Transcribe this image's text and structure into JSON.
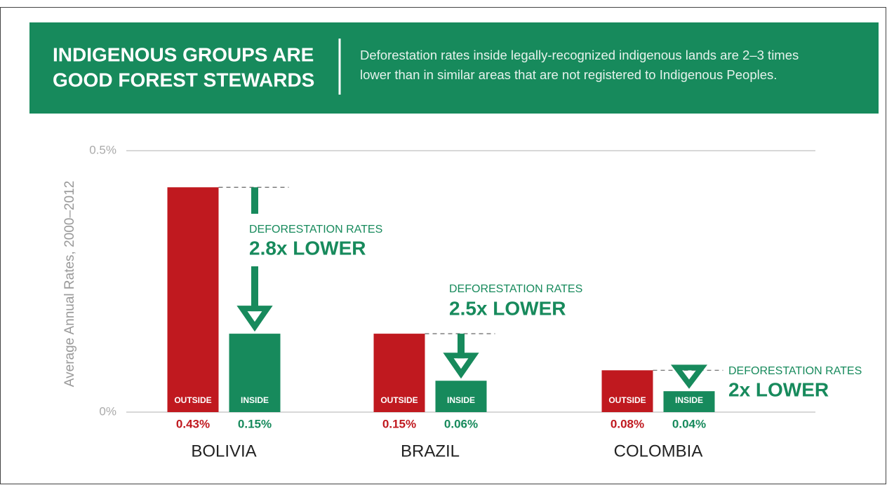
{
  "header": {
    "title": [
      "INDIGENOUS GROUPS ARE",
      "GOOD FOREST STEWARDS"
    ],
    "subtitle": [
      "Deforestation rates inside legally-recognized indigenous lands are 2–3 times",
      "lower than in similar areas that are not registered to Indigenous Peoples."
    ]
  },
  "chart_data": {
    "type": "bar",
    "y_label": "Average Annual Rates, 2000–2012",
    "categories": [
      "BOLIVIA",
      "BRAZIL",
      "COLOMBIA"
    ],
    "series": [
      {
        "name": "OUTSIDE",
        "color": "#c0191f",
        "values": [
          0.43,
          0.15,
          0.08
        ],
        "value_labels": [
          "0.43%",
          "0.15%",
          "0.08%"
        ]
      },
      {
        "name": "INSIDE",
        "color": "#178a5c",
        "values": [
          0.15,
          0.06,
          0.04
        ],
        "value_labels": [
          "0.15%",
          "0.06%",
          "0.04%"
        ]
      }
    ],
    "ylim": [
      0,
      0.5
    ],
    "yticks": [
      {
        "value": 0,
        "label": "0%"
      },
      {
        "value": 0.5,
        "label": "0.5%"
      }
    ],
    "grid": true,
    "annotations": [
      {
        "text": "DEFORESTATION RATES",
        "emphasis": "2.8x LOWER"
      },
      {
        "text": "DEFORESTATION RATES",
        "emphasis": "2.5x LOWER"
      },
      {
        "text": "DEFORESTATION RATES",
        "emphasis": "2x LOWER"
      }
    ]
  }
}
